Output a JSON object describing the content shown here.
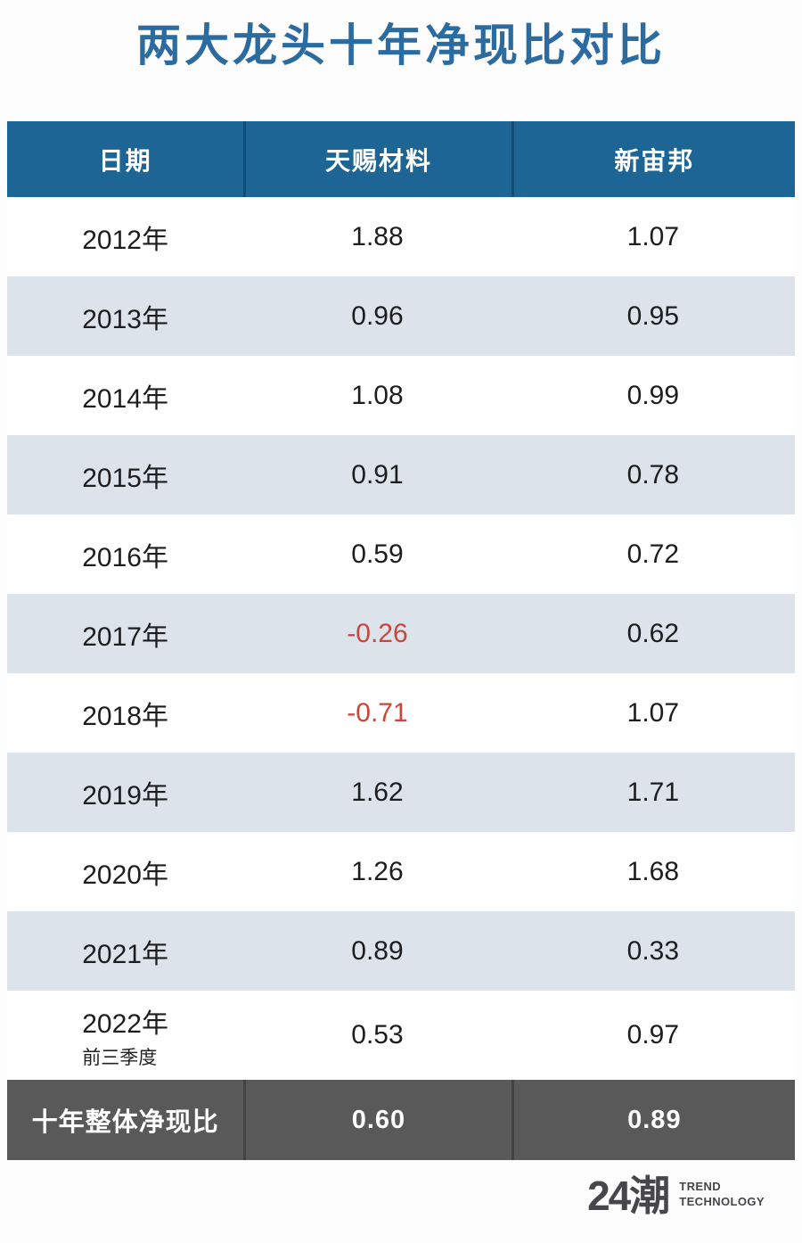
{
  "page": {
    "title": "两大龙头十年净现比对比"
  },
  "colors": {
    "title_blue": "#2c6ba0",
    "header_blue": "#1c6594",
    "row_alt": "#dce3eb",
    "footer_gray": "#595959",
    "negative_red": "#cb463a",
    "text_dark": "#1d1d1f"
  },
  "table": {
    "columns": [
      "日期",
      "天赐材料",
      "新宙邦"
    ],
    "rows": [
      {
        "year": "2012年",
        "tianci": "1.88",
        "xinzhoubang": "1.07"
      },
      {
        "year": "2013年",
        "tianci": "0.96",
        "xinzhoubang": "0.95"
      },
      {
        "year": "2014年",
        "tianci": "1.08",
        "xinzhoubang": "0.99"
      },
      {
        "year": "2015年",
        "tianci": "0.91",
        "xinzhoubang": "0.78"
      },
      {
        "year": "2016年",
        "tianci": "0.59",
        "xinzhoubang": "0.72"
      },
      {
        "year": "2017年",
        "tianci": "-0.26",
        "xinzhoubang": "0.62"
      },
      {
        "year": "2018年",
        "tianci": "-0.71",
        "xinzhoubang": "1.07"
      },
      {
        "year": "2019年",
        "tianci": "1.62",
        "xinzhoubang": "1.71"
      },
      {
        "year": "2020年",
        "tianci": "1.26",
        "xinzhoubang": "1.68"
      },
      {
        "year": "2021年",
        "tianci": "0.89",
        "xinzhoubang": "0.33"
      },
      {
        "year": "2022年",
        "sublabel": "前三季度",
        "tianci": "0.53",
        "xinzhoubang": "0.97"
      }
    ],
    "footer": {
      "label": "十年整体净现比",
      "tianci": "0.60",
      "xinzhoubang": "0.89"
    }
  },
  "logo": {
    "mark": "24潮",
    "line1": "TREND",
    "line2": "TECHNOLOGY"
  },
  "chart_data": {
    "type": "table",
    "title": "两大龙头十年净现比对比",
    "categories": [
      "2012年",
      "2013年",
      "2014年",
      "2015年",
      "2016年",
      "2017年",
      "2018年",
      "2019年",
      "2020年",
      "2021年",
      "2022年前三季度"
    ],
    "series": [
      {
        "name": "天赐材料",
        "values": [
          1.88,
          0.96,
          1.08,
          0.91,
          0.59,
          -0.26,
          -0.71,
          1.62,
          1.26,
          0.89,
          0.53
        ],
        "overall_ten_year": 0.6
      },
      {
        "name": "新宙邦",
        "values": [
          1.07,
          0.95,
          0.99,
          0.78,
          0.72,
          0.62,
          1.07,
          1.71,
          1.68,
          0.33,
          0.97
        ],
        "overall_ten_year": 0.89
      }
    ],
    "footer_label": "十年整体净现比",
    "negative_values_highlighted_red": [
      -0.26,
      -0.71
    ]
  }
}
